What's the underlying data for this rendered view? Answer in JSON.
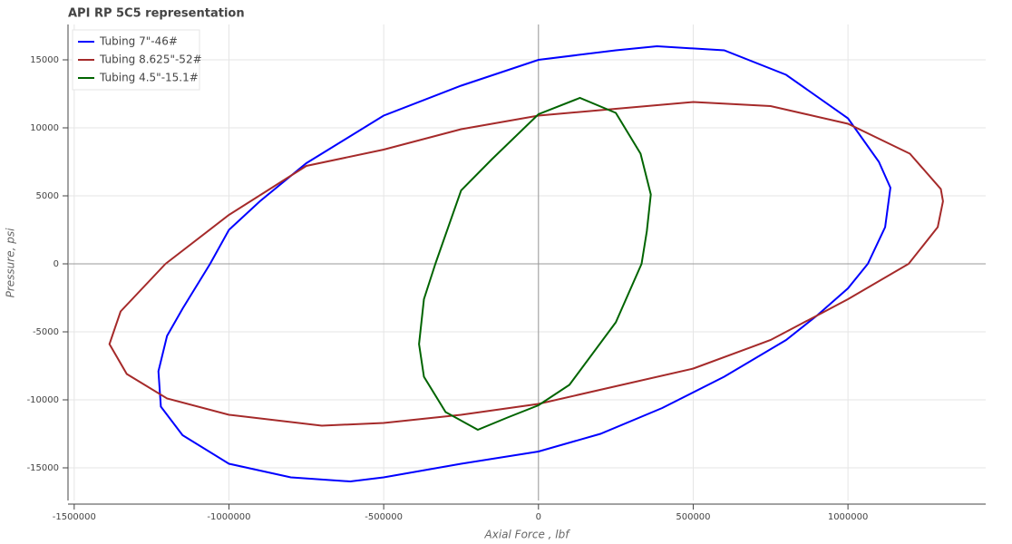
{
  "chart_data": {
    "type": "line",
    "title": "API RP 5C5 representation",
    "x_label": "Axial Force , lbf",
    "y_label": "Pressure, psi",
    "xlim": [
      -1520000,
      1445000
    ],
    "ylim": [
      -17400,
      17600
    ],
    "xticks": [
      -1500000,
      -1000000,
      -500000,
      0,
      500000,
      1000000
    ],
    "yticks": [
      -15000,
      -10000,
      -5000,
      0,
      5000,
      10000,
      15000
    ],
    "grid": true,
    "legend": "top-left",
    "series": [
      {
        "name": "Tubing 7\"-46#",
        "color": "#0000ff",
        "x": [
          -1061000,
          -1000000,
          -900000,
          -750000,
          -500000,
          -250000,
          0,
          250000,
          383000,
          600000,
          800000,
          1000000,
          1100000,
          1137000,
          1120000,
          1064000,
          1000000,
          900000,
          800000,
          600000,
          400000,
          200000,
          0,
          -250000,
          -500000,
          -608000,
          -800000,
          -1000000,
          -1150000,
          -1220000,
          -1228000,
          -1200000,
          -1150000,
          -1061000
        ],
        "values": [
          0,
          2500,
          4600,
          7400,
          10900,
          13100,
          15000,
          15700,
          16000,
          15700,
          13900,
          10700,
          7500,
          5600,
          2700,
          0,
          -1800,
          -3800,
          -5600,
          -8300,
          -10600,
          -12500,
          -13800,
          -14700,
          -15700,
          -16000,
          -15700,
          -14700,
          -12600,
          -10500,
          -7900,
          -5300,
          -3300,
          0
        ]
      },
      {
        "name": "Tubing 8.625\"-52#",
        "color": "#a52a2a",
        "x": [
          -1205000,
          -1000000,
          -750000,
          -500000,
          -250000,
          0,
          250000,
          500000,
          750000,
          1000000,
          1200000,
          1300000,
          1307000,
          1290000,
          1196000,
          1000000,
          750000,
          500000,
          250000,
          0,
          -250000,
          -500000,
          -700000,
          -1000000,
          -1200000,
          -1330000,
          -1386000,
          -1350000,
          -1205000
        ],
        "values": [
          0,
          3600,
          7200,
          8400,
          9900,
          10900,
          11400,
          11900,
          11600,
          10300,
          8100,
          5500,
          4600,
          2700,
          0,
          -2600,
          -5600,
          -7700,
          -9000,
          -10300,
          -11100,
          -11700,
          -11900,
          -11100,
          -9900,
          -8100,
          -5900,
          -3500,
          0
        ]
      },
      {
        "name": "Tubing 4.5\"-15.1#",
        "color": "#006400",
        "x": [
          -333000,
          -250000,
          -150000,
          0,
          134000,
          250000,
          330000,
          363000,
          350000,
          333000,
          250000,
          100000,
          0,
          -100000,
          -196000,
          -300000,
          -370000,
          -386000,
          -370000,
          -333000
        ],
        "values": [
          0,
          5400,
          7700,
          11000,
          12200,
          11100,
          8100,
          5100,
          2400,
          0,
          -4300,
          -8900,
          -10400,
          -11300,
          -12200,
          -10900,
          -8300,
          -5900,
          -2600,
          0
        ]
      }
    ]
  }
}
